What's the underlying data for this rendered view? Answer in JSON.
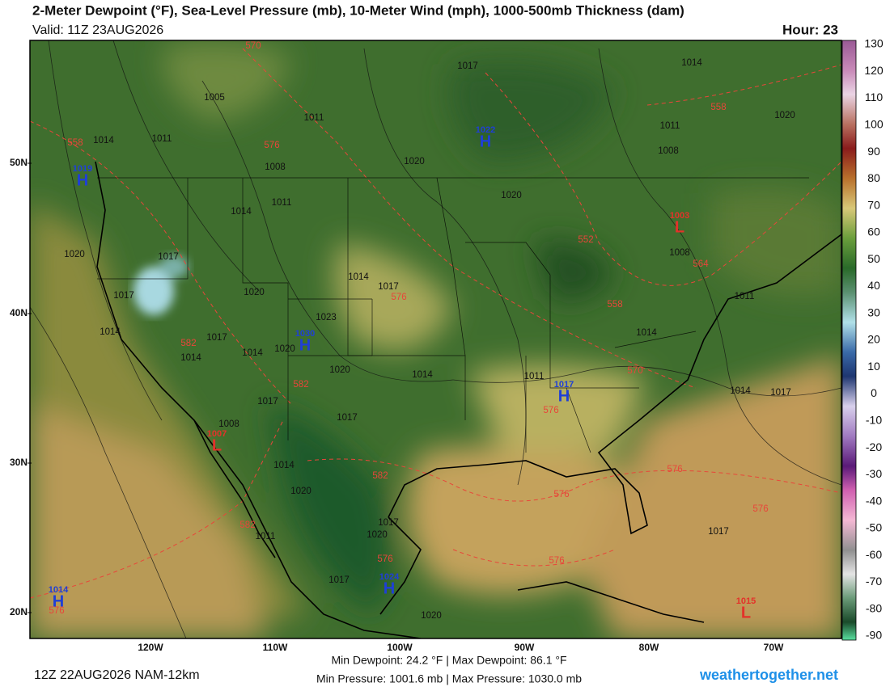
{
  "header": {
    "title": "2-Meter Dewpoint (°F), Sea-Level Pressure (mb), 10-Meter Wind (mph), 1000-500mb Thickness (dam)",
    "valid": "Valid: 11Z 23AUG2026",
    "hour": "Hour: 23"
  },
  "map": {
    "lat_labels": [
      "50N",
      "40N",
      "30N",
      "20N"
    ],
    "lon_labels": [
      "120W",
      "110W",
      "100W",
      "90W",
      "80W",
      "70W"
    ],
    "pressure_labels": [
      1017,
      1014,
      1005,
      1011,
      1011,
      1020,
      1014,
      1011,
      1008,
      1008,
      1020,
      1011,
      1014,
      1020,
      1020,
      1017,
      1017,
      1020,
      1014,
      1017,
      1023,
      1014,
      1017,
      1014,
      1014,
      1020,
      1020,
      1014,
      1011,
      1014,
      1011,
      1008,
      1017,
      1017,
      1008,
      1014,
      1020,
      1017,
      1020,
      1011,
      1017,
      1020,
      1014,
      1017,
      1017
    ],
    "thickness_labels": [
      570,
      558,
      576,
      558,
      552,
      564,
      558,
      576,
      582,
      582,
      570,
      576,
      582,
      576,
      576,
      576,
      582,
      576,
      576,
      576
    ],
    "highs": [
      {
        "pressure": 1019,
        "letter": "H"
      },
      {
        "pressure": 1022,
        "letter": "H"
      },
      {
        "pressure": 1030,
        "letter": "H"
      },
      {
        "pressure": 1017,
        "letter": "H"
      },
      {
        "pressure": 1024,
        "letter": "H"
      },
      {
        "pressure": 1014,
        "letter": "H"
      }
    ],
    "lows": [
      {
        "pressure": 1007,
        "letter": "L"
      },
      {
        "pressure": 1003,
        "letter": "L"
      },
      {
        "pressure": 1015,
        "letter": "L"
      }
    ]
  },
  "colorbar": {
    "ticks": [
      130,
      120,
      110,
      100,
      90,
      80,
      70,
      60,
      50,
      40,
      30,
      20,
      10,
      0,
      -10,
      -20,
      -30,
      -40,
      -50,
      -60,
      -70,
      -80,
      -90
    ]
  },
  "footer": {
    "run": "12Z 22AUG2026 NAM-12km",
    "stats": [
      "Min Dewpoint:  24.2 °F | Max Dewpoint:  86.1 °F",
      "Min Pressure: 1001.6 mb | Max Pressure: 1030.0 mb"
    ],
    "site": "weathertogether.net"
  }
}
